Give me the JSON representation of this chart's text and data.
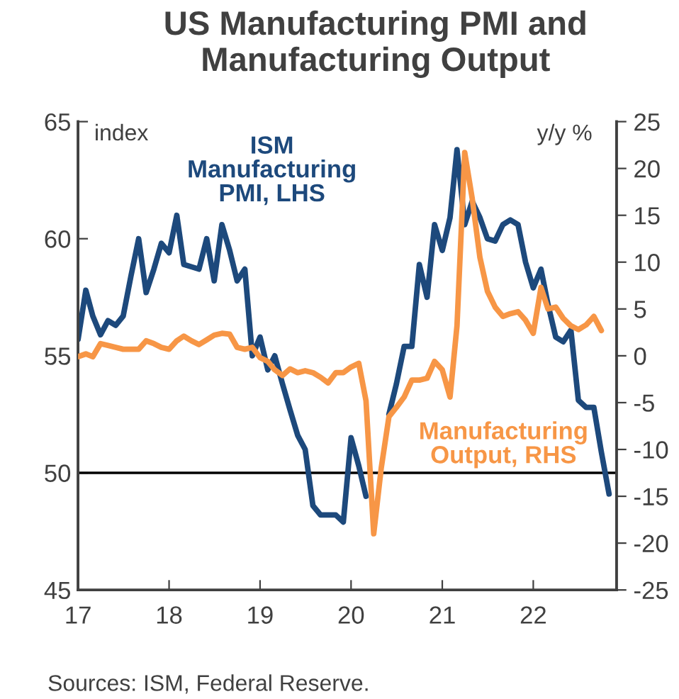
{
  "chart_data": {
    "type": "line",
    "title": "US Manufacturing PMI and\nManufacturing Output",
    "x": [
      "2017-01",
      "2017-02",
      "2017-03",
      "2017-04",
      "2017-05",
      "2017-06",
      "2017-07",
      "2017-08",
      "2017-09",
      "2017-10",
      "2017-11",
      "2017-12",
      "2018-01",
      "2018-02",
      "2018-03",
      "2018-04",
      "2018-05",
      "2018-06",
      "2018-07",
      "2018-08",
      "2018-09",
      "2018-10",
      "2018-11",
      "2018-12",
      "2019-01",
      "2019-02",
      "2019-03",
      "2019-04",
      "2019-05",
      "2019-06",
      "2019-07",
      "2019-08",
      "2019-09",
      "2019-10",
      "2019-11",
      "2019-12",
      "2020-01",
      "2020-02",
      "2020-03",
      "2020-04",
      "2020-05",
      "2020-06",
      "2020-07",
      "2020-08",
      "2020-09",
      "2020-10",
      "2020-11",
      "2020-12",
      "2021-01",
      "2021-02",
      "2021-03",
      "2021-04",
      "2021-05",
      "2021-06",
      "2021-07",
      "2021-08",
      "2021-09",
      "2021-10",
      "2021-11",
      "2021-12",
      "2022-01",
      "2022-02",
      "2022-03",
      "2022-04",
      "2022-05",
      "2022-06",
      "2022-07",
      "2022-08",
      "2022-09",
      "2022-10",
      "2022-11"
    ],
    "series": [
      {
        "name": "ISM\nManufacturing\nPMI, LHS",
        "color": "#1d497c",
        "axis": "y",
        "values": [
          55.7,
          57.8,
          56.7,
          55.9,
          56.5,
          56.3,
          56.7,
          58.4,
          60.0,
          57.7,
          58.7,
          59.8,
          59.4,
          61.0,
          58.9,
          58.8,
          58.7,
          60.0,
          58.2,
          60.6,
          59.5,
          58.2,
          58.7,
          55.0,
          55.8,
          54.4,
          55.0,
          53.8,
          52.7,
          51.6,
          51.0,
          48.6,
          48.2,
          48.2,
          48.2,
          47.9,
          51.5,
          50.3,
          49.0,
          null,
          null,
          52.5,
          53.8,
          55.4,
          55.4,
          58.9,
          57.5,
          60.6,
          59.5,
          60.9,
          63.8,
          60.6,
          61.6,
          60.9,
          60.0,
          59.9,
          60.6,
          60.8,
          60.6,
          59.0,
          57.9,
          58.7,
          57.2,
          55.8,
          55.6,
          56.1,
          53.1,
          52.8,
          52.8,
          50.9,
          49.1
        ]
      },
      {
        "name": "Manufacturing\nOutput, RHS",
        "color": "#f79646",
        "axis": "y2",
        "values": [
          -0.1,
          0.2,
          -0.1,
          1.3,
          1.1,
          0.9,
          0.7,
          0.7,
          0.7,
          1.6,
          1.3,
          0.9,
          0.7,
          1.6,
          2.1,
          1.6,
          1.2,
          1.7,
          2.2,
          2.4,
          2.3,
          0.9,
          0.7,
          0.9,
          -0.2,
          -0.6,
          -1.5,
          -2.1,
          -1.4,
          -1.8,
          -1.6,
          -1.8,
          -2.3,
          -2.9,
          -1.8,
          -1.8,
          -1.2,
          -0.8,
          -4.8,
          -19.0,
          -12.0,
          -6.5,
          -5.5,
          -4.4,
          -2.6,
          -2.6,
          -2.4,
          -0.6,
          -1.5,
          -4.4,
          3.2,
          21.7,
          16.8,
          10.5,
          6.9,
          5.2,
          4.2,
          4.5,
          4.7,
          3.8,
          2.4,
          7.3,
          5.0,
          5.2,
          4.0,
          3.2,
          2.8,
          3.3,
          4.2,
          2.7,
          null
        ]
      }
    ],
    "xlim": [
      "2017-01",
      "2022-12"
    ],
    "xticks": [
      {
        "value": "2017-01",
        "label": "17"
      },
      {
        "value": "2018-01",
        "label": "18"
      },
      {
        "value": "2019-01",
        "label": "19"
      },
      {
        "value": "2020-01",
        "label": "20"
      },
      {
        "value": "2021-01",
        "label": "21"
      },
      {
        "value": "2022-01",
        "label": "22"
      }
    ],
    "ylim": [
      45,
      65
    ],
    "yticks": [
      45,
      50,
      55,
      60,
      65
    ],
    "y2lim": [
      -25,
      25
    ],
    "y2ticks": [
      -25,
      -20,
      -15,
      -10,
      -5,
      0,
      5,
      10,
      15,
      20,
      25
    ],
    "ref_lines": [
      {
        "axis": "y",
        "value": 50,
        "color": "#000000"
      }
    ],
    "annotations": [
      "index",
      "y/y %",
      "Sources: ISM, Federal Reserve."
    ],
    "grid": false,
    "legend": false
  }
}
